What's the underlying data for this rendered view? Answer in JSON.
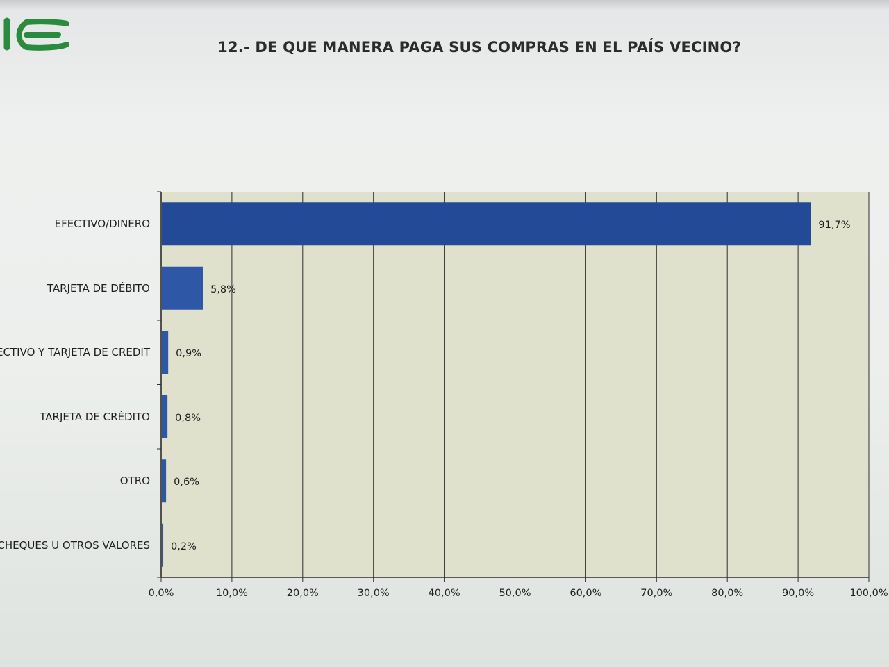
{
  "colors": {
    "bar": "#2e58a6",
    "bar_dark": "#224a96",
    "plot_background": "#dfe1cd",
    "gridline": "#2f2f2f",
    "logo": "#2a8a3e"
  },
  "logo": {
    "icon": "green-logo-mark-icon"
  },
  "chart_data": {
    "type": "bar",
    "orientation": "horizontal",
    "title": "12.- DE QUE MANERA PAGA SUS COMPRAS EN EL PAÍS VECINO?",
    "categories": [
      "EFECTIVO/DINERO",
      "TARJETA DE DÉBITO",
      "ECTIVO Y TARJETA DE CREDIT",
      "TARJETA DE CRÉDITO",
      "OTRO",
      "CHEQUES U OTROS VALORES"
    ],
    "values": [
      91.7,
      5.8,
      0.9,
      0.8,
      0.6,
      0.2
    ],
    "value_labels": [
      "91,7%",
      "5,8%",
      "0,9%",
      "0,8%",
      "0,6%",
      "0,2%"
    ],
    "xlim": [
      0,
      100
    ],
    "x_ticks": [
      0,
      10,
      20,
      30,
      40,
      50,
      60,
      70,
      80,
      90,
      100
    ],
    "x_tick_labels": [
      "0,0%",
      "10,0%",
      "20,0%",
      "30,0%",
      "40,0%",
      "50,0%",
      "60,0%",
      "70,0%",
      "80,0%",
      "90,0%",
      "100,0%"
    ],
    "grid": true,
    "legend": "none"
  }
}
